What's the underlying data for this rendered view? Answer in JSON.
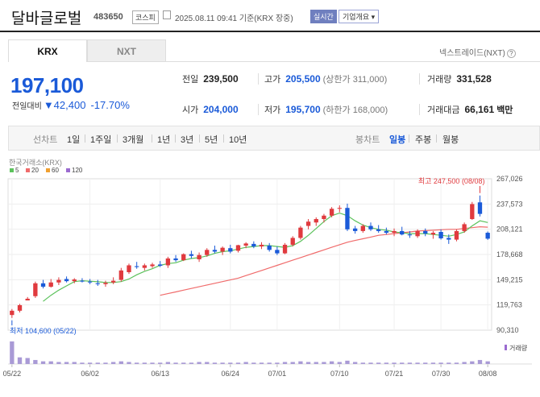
{
  "header": {
    "name": "달바글로벌",
    "code": "483650",
    "market": "코스피",
    "timestamp": "2025.08.11 09:41 기준(KRX 장중)",
    "realtime_label": "실시간",
    "company_info_label": "기업개요 ▾"
  },
  "tabs": {
    "krx": "KRX",
    "nxt": "NXT"
  },
  "nxt_link": "넥스트레이드(NXT)",
  "quote": {
    "price": "197,100",
    "change_label": "전일대비",
    "change": "▼42,400",
    "pct": "-17.70%"
  },
  "stats": {
    "prev_label": "전일",
    "prev": "239,500",
    "high_label": "고가",
    "high": "205,500",
    "upper_limit": "(상한가 311,000)",
    "vol_label": "거래량",
    "vol": "331,528",
    "open_label": "시가",
    "open": "204,000",
    "low_label": "저가",
    "low": "195,700",
    "lower_limit": "(하한가 168,000)",
    "amt_label": "거래대금",
    "amt": "66,161",
    "amt_unit": "백만"
  },
  "toolbar": {
    "line_chart": "선차트",
    "d1": "1일",
    "w1": "1주일",
    "m3": "3개월",
    "y1": "1년",
    "y3": "3년",
    "y5": "5년",
    "y10": "10년",
    "candle_chart": "봉차트",
    "daily": "일봉",
    "weekly": "주봉",
    "monthly": "월봉"
  },
  "colors": {
    "up": "#e03a3e",
    "down": "#1a5ad8",
    "ma5": "#5cc25c",
    "ma20": "#f06b6b",
    "ma60": "#f0a030",
    "ma120": "#9b6bd0"
  },
  "chart_data": {
    "type": "candlestick",
    "source_label": "한국거래소(KRX)",
    "legend": [
      "5",
      "20",
      "60",
      "120"
    ],
    "y_ticks": [
      "267,026",
      "237,573",
      "208,121",
      "178,668",
      "149,215",
      "119,763",
      "90,310"
    ],
    "ylim": [
      90310,
      267026
    ],
    "x_labels": [
      "05/22",
      "06/02",
      "06/13",
      "06/24",
      "07/01",
      "07/10",
      "07/21",
      "07/30",
      "08/08"
    ],
    "high_note": "최고 247,500 (08/08)",
    "low_note": "최저 104,600 (05/22)",
    "volume_label": "거래량",
    "candles": [
      {
        "o": 108000,
        "h": 115000,
        "l": 104600,
        "c": 113000
      },
      {
        "o": 113000,
        "h": 121000,
        "l": 111000,
        "c": 119500
      },
      {
        "o": 125000,
        "h": 129000,
        "l": 126000,
        "c": 127000
      },
      {
        "o": 130000,
        "h": 147000,
        "l": 128000,
        "c": 145000
      },
      {
        "o": 145000,
        "h": 149000,
        "l": 139000,
        "c": 141000
      },
      {
        "o": 141000,
        "h": 150000,
        "l": 140000,
        "c": 146000
      },
      {
        "o": 146000,
        "h": 152000,
        "l": 143000,
        "c": 149000
      },
      {
        "o": 150000,
        "h": 153000,
        "l": 146000,
        "c": 147500
      },
      {
        "o": 147500,
        "h": 151000,
        "l": 145000,
        "c": 149500
      },
      {
        "o": 148000,
        "h": 151000,
        "l": 146000,
        "c": 147000
      },
      {
        "o": 147000,
        "h": 150000,
        "l": 144000,
        "c": 146000
      },
      {
        "o": 145000,
        "h": 149000,
        "l": 142000,
        "c": 144000
      },
      {
        "o": 144000,
        "h": 148000,
        "l": 141000,
        "c": 145500
      },
      {
        "o": 146000,
        "h": 152000,
        "l": 144000,
        "c": 148000
      },
      {
        "o": 149000,
        "h": 163000,
        "l": 147000,
        "c": 160000
      },
      {
        "o": 158000,
        "h": 168000,
        "l": 156000,
        "c": 166000
      },
      {
        "o": 165000,
        "h": 170000,
        "l": 162000,
        "c": 164000
      },
      {
        "o": 163000,
        "h": 168000,
        "l": 160000,
        "c": 166000
      },
      {
        "o": 165000,
        "h": 169000,
        "l": 163000,
        "c": 167000
      },
      {
        "o": 167000,
        "h": 171000,
        "l": 164000,
        "c": 165500
      },
      {
        "o": 166000,
        "h": 176000,
        "l": 163000,
        "c": 174000
      },
      {
        "o": 174000,
        "h": 178000,
        "l": 170000,
        "c": 172000
      },
      {
        "o": 172000,
        "h": 180000,
        "l": 171000,
        "c": 179000
      },
      {
        "o": 179000,
        "h": 183000,
        "l": 174000,
        "c": 177000
      },
      {
        "o": 173000,
        "h": 181000,
        "l": 170000,
        "c": 178000
      },
      {
        "o": 178000,
        "h": 186000,
        "l": 176000,
        "c": 184000
      },
      {
        "o": 184000,
        "h": 189000,
        "l": 180000,
        "c": 182000
      },
      {
        "o": 182000,
        "h": 188000,
        "l": 178000,
        "c": 186500
      },
      {
        "o": 186000,
        "h": 190000,
        "l": 180000,
        "c": 182000
      },
      {
        "o": 183000,
        "h": 190000,
        "l": 181000,
        "c": 189500
      },
      {
        "o": 189000,
        "h": 193000,
        "l": 186000,
        "c": 191500
      },
      {
        "o": 191000,
        "h": 194000,
        "l": 186000,
        "c": 188000
      },
      {
        "o": 188000,
        "h": 193000,
        "l": 185000,
        "c": 190000
      },
      {
        "o": 189000,
        "h": 192000,
        "l": 182000,
        "c": 184000
      },
      {
        "o": 184000,
        "h": 188000,
        "l": 178000,
        "c": 180000
      },
      {
        "o": 180000,
        "h": 192000,
        "l": 179000,
        "c": 190000
      },
      {
        "o": 190000,
        "h": 200000,
        "l": 188000,
        "c": 198000
      },
      {
        "o": 198000,
        "h": 212000,
        "l": 196000,
        "c": 210000
      },
      {
        "o": 212000,
        "h": 220000,
        "l": 208000,
        "c": 217000
      },
      {
        "o": 216000,
        "h": 222000,
        "l": 212000,
        "c": 220000
      },
      {
        "o": 220000,
        "h": 226000,
        "l": 216000,
        "c": 224000
      },
      {
        "o": 224000,
        "h": 234000,
        "l": 222000,
        "c": 232000
      },
      {
        "o": 232000,
        "h": 236000,
        "l": 228000,
        "c": 233000
      },
      {
        "o": 233000,
        "h": 238000,
        "l": 206000,
        "c": 208000
      },
      {
        "o": 209000,
        "h": 212000,
        "l": 203000,
        "c": 206000
      },
      {
        "o": 206000,
        "h": 214000,
        "l": 204000,
        "c": 212000
      },
      {
        "o": 212000,
        "h": 216000,
        "l": 206000,
        "c": 208000
      },
      {
        "o": 208000,
        "h": 213000,
        "l": 204000,
        "c": 206000
      },
      {
        "o": 206000,
        "h": 210000,
        "l": 202000,
        "c": 204000
      },
      {
        "o": 204000,
        "h": 209000,
        "l": 200000,
        "c": 206000
      },
      {
        "o": 206000,
        "h": 211000,
        "l": 201000,
        "c": 202000
      },
      {
        "o": 202000,
        "h": 206000,
        "l": 198000,
        "c": 201000
      },
      {
        "o": 200000,
        "h": 208000,
        "l": 198000,
        "c": 206000
      },
      {
        "o": 206000,
        "h": 209000,
        "l": 200000,
        "c": 203000
      },
      {
        "o": 202000,
        "h": 206000,
        "l": 197000,
        "c": 204000
      },
      {
        "o": 205000,
        "h": 208000,
        "l": 196000,
        "c": 197500
      },
      {
        "o": 198000,
        "h": 202000,
        "l": 191000,
        "c": 196000
      },
      {
        "o": 196000,
        "h": 208000,
        "l": 194000,
        "c": 206000
      },
      {
        "o": 206000,
        "h": 216000,
        "l": 204000,
        "c": 214000
      },
      {
        "o": 220000,
        "h": 240000,
        "l": 219000,
        "c": 237500
      },
      {
        "o": 239500,
        "h": 247500,
        "l": 223000,
        "c": 226000
      },
      {
        "o": 204000,
        "h": 205500,
        "l": 195700,
        "c": 197100
      }
    ],
    "ma5": [
      null,
      null,
      null,
      null,
      124000,
      131000,
      137000,
      142000,
      147000,
      148000,
      147500,
      146800,
      146000,
      146000,
      147000,
      150000,
      155000,
      159000,
      162000,
      166000,
      168000,
      169000,
      172000,
      174000,
      175000,
      177000,
      180000,
      182000,
      183000,
      185000,
      187000,
      188000,
      189000,
      189000,
      188000,
      187000,
      189000,
      194000,
      201000,
      209000,
      217000,
      224000,
      227000,
      224000,
      218000,
      213000,
      210000,
      208000,
      207000,
      205000,
      204000,
      203000,
      203000,
      203000,
      202000,
      201000,
      200000,
      202000,
      205000,
      212000,
      218000,
      216000
    ],
    "ma20": [
      null,
      null,
      null,
      null,
      null,
      null,
      null,
      null,
      null,
      null,
      null,
      null,
      null,
      null,
      null,
      null,
      null,
      null,
      null,
      131000,
      133000,
      135000,
      137000,
      139000,
      141000,
      143000,
      145000,
      147000,
      149000,
      151000,
      154000,
      157000,
      160000,
      163000,
      166000,
      169000,
      172000,
      175000,
      178000,
      181000,
      184000,
      187000,
      190000,
      193000,
      195000,
      197000,
      199000,
      201000,
      202000,
      203000,
      204000,
      205000,
      206000,
      206500,
      207000,
      207500,
      208000,
      208000,
      209000,
      210000,
      211000,
      210500
    ],
    "volumes": [
      34,
      10,
      9,
      6,
      4,
      4,
      3,
      3,
      3,
      2,
      2,
      2,
      2,
      3,
      4,
      3,
      2,
      2,
      2,
      2,
      3,
      2,
      2,
      2,
      3,
      3,
      2,
      2,
      2,
      2,
      3,
      2,
      2,
      2,
      2,
      3,
      3,
      4,
      3,
      3,
      3,
      4,
      3,
      5,
      3,
      2,
      2,
      2,
      2,
      2,
      2,
      2,
      2,
      2,
      2,
      2,
      2,
      2,
      3,
      4,
      6,
      4
    ]
  }
}
